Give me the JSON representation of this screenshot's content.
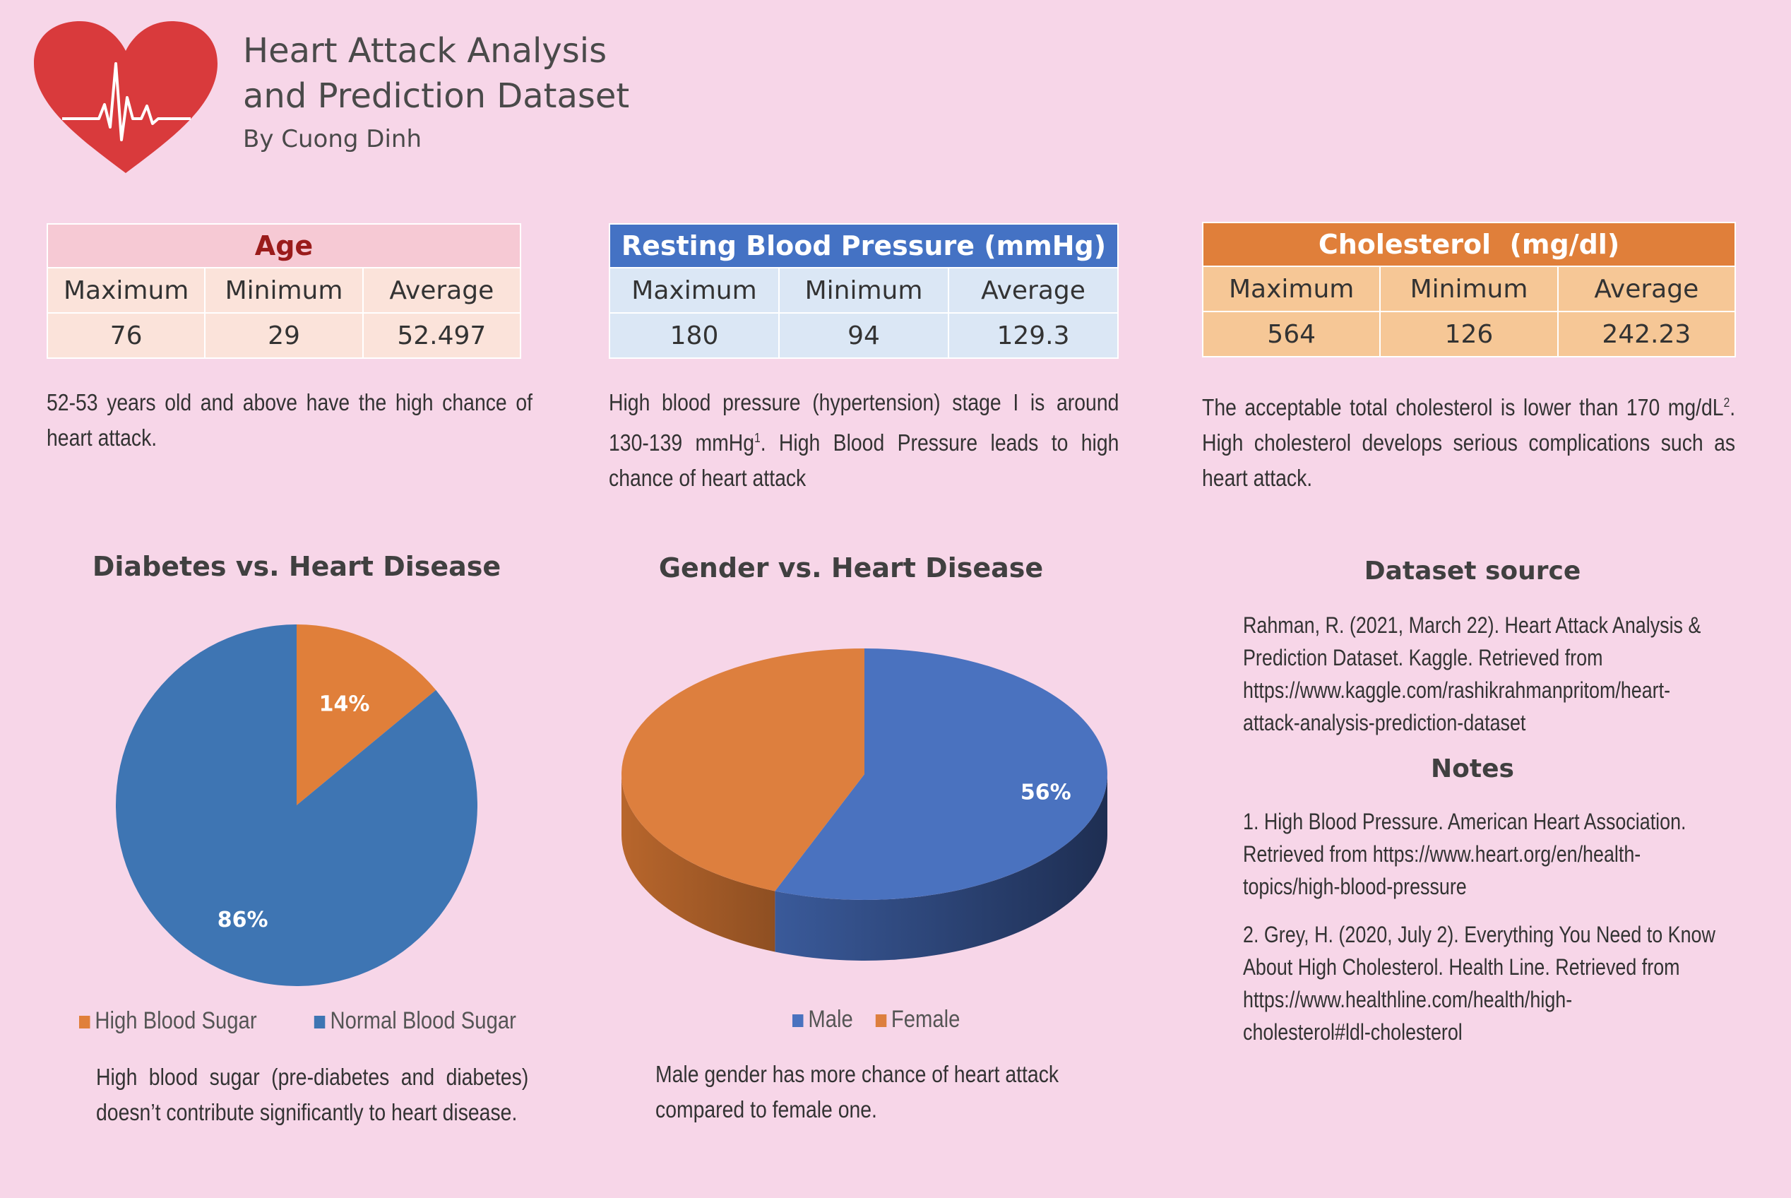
{
  "header": {
    "title_line1": "Heart Attack Analysis",
    "title_line2": "and Prediction Dataset",
    "subtitle": "By Cuong Dinh"
  },
  "tables": {
    "age": {
      "title": "Age",
      "headers": [
        "Maximum",
        "Minimum",
        "Average"
      ],
      "values": [
        "76",
        "29",
        "52.497"
      ]
    },
    "blood_pressure": {
      "title": "Resting Blood Pressure (mmHg)",
      "headers": [
        "Maximum",
        "Minimum",
        "Average"
      ],
      "values": [
        "180",
        "94",
        "129.3"
      ]
    },
    "cholesterol": {
      "title": "Cholesterol  (mg/dl)",
      "headers": [
        "Maximum",
        "Minimum",
        "Average"
      ],
      "values": [
        "564",
        "126",
        "242.23"
      ]
    }
  },
  "notes": {
    "age": "52-53 years old and above have the high chance of heart attack.",
    "bp_a": "High blood pressure (hypertension) stage I is around 130-139 mmHg",
    "bp_sup": "1",
    "bp_b": ". High Blood Pressure leads to high chance of heart attack",
    "ch_a": "The acceptable total cholesterol is lower than 170 mg/dL",
    "ch_sup": "2",
    "ch_b": ". High cholesterol develops serious complications such as heart attack.",
    "diabetes": "High blood sugar (pre-diabetes and diabetes) doesn’t contribute significantly to heart disease.",
    "gender": "Male gender has more chance of heart attack compared to female one."
  },
  "chart_data": [
    {
      "type": "pie",
      "title": "Diabetes vs. Heart Disease",
      "categories": [
        "High Blood Sugar",
        "Normal Blood Sugar"
      ],
      "values": [
        14,
        86
      ],
      "labels": [
        "14%",
        "86%"
      ],
      "colors": [
        "#e07f3a",
        "#3e75b3"
      ],
      "legend": "bottom"
    },
    {
      "type": "pie",
      "title": "Gender vs. Heart Disease",
      "categories": [
        "Male",
        "Female"
      ],
      "values": [
        56,
        44
      ],
      "labels": [
        "56%",
        ""
      ],
      "colors": [
        "#4a72bf",
        "#dd7f3e"
      ],
      "legend": "bottom"
    }
  ],
  "source": {
    "heading": "Dataset source",
    "text": "Rahman, R. (2021, March 22). Heart Attack Analysis &\nPrediction Dataset. Kaggle. Retrieved from\nhttps://www.kaggle.com/rashikrahmanpritom/heart-\nattack-analysis-prediction-dataset",
    "notes_heading": "Notes",
    "note1": "1. High Blood Pressure. American Heart Association.\nRetrieved from https://www.heart.org/en/health-\ntopics/high-blood-pressure",
    "note2": "2.  Grey, H. (2020, July 2). Everything You Need to Know\nAbout High Cholesterol. Health Line. Retrieved from\nhttps://www.healthline.com/health/high-\ncholesterol#ldl-cholesterol"
  }
}
